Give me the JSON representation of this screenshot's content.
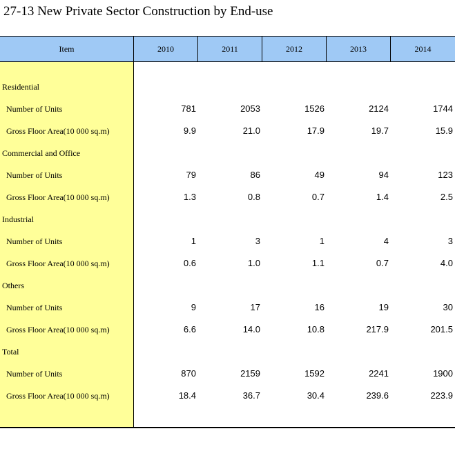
{
  "title": "27-13  New Private Sector Construction by End-use",
  "header": {
    "item": "Item",
    "years": [
      "2010",
      "2011",
      "2012",
      "2013",
      "2014"
    ]
  },
  "rows": [
    {
      "label": "Residential",
      "type": "section",
      "values": []
    },
    {
      "label": "Number of Units",
      "type": "sub",
      "values": [
        "781",
        "2053",
        "1526",
        "2124",
        "1744"
      ]
    },
    {
      "label": "Gross Floor Area(10 000 sq.m)",
      "type": "sub",
      "values": [
        "9.9",
        "21.0",
        "17.9",
        "19.7",
        "15.9"
      ]
    },
    {
      "label": "Commercial and Office",
      "type": "section",
      "values": []
    },
    {
      "label": "Number of Units",
      "type": "sub",
      "values": [
        "79",
        "86",
        "49",
        "94",
        "123"
      ]
    },
    {
      "label": "Gross Floor Area(10 000 sq.m)",
      "type": "sub",
      "values": [
        "1.3",
        "0.8",
        "0.7",
        "1.4",
        "2.5"
      ]
    },
    {
      "label": "Industrial",
      "type": "section",
      "values": []
    },
    {
      "label": "Number of Units",
      "type": "sub",
      "values": [
        "1",
        "3",
        "1",
        "4",
        "3"
      ]
    },
    {
      "label": "Gross Floor Area(10 000 sq.m)",
      "type": "sub",
      "values": [
        "0.6",
        "1.0",
        "1.1",
        "0.7",
        "4.0"
      ]
    },
    {
      "label": "Others",
      "type": "section",
      "values": []
    },
    {
      "label": "Number of Units",
      "type": "sub",
      "values": [
        "9",
        "17",
        "16",
        "19",
        "30"
      ]
    },
    {
      "label": "Gross Floor Area(10 000 sq.m)",
      "type": "sub",
      "values": [
        "6.6",
        "14.0",
        "10.8",
        "217.9",
        "201.5"
      ]
    },
    {
      "label": "Total",
      "type": "section",
      "values": []
    },
    {
      "label": "Number of Units",
      "type": "sub",
      "values": [
        "870",
        "2159",
        "1592",
        "2241",
        "1900"
      ]
    },
    {
      "label": "Gross Floor Area(10 000 sq.m)",
      "type": "sub",
      "values": [
        "18.4",
        "36.7",
        "30.4",
        "239.6",
        "223.9"
      ]
    }
  ],
  "colors": {
    "header_bg": "#9fc9f5",
    "item_col_bg": "#ffff99"
  }
}
